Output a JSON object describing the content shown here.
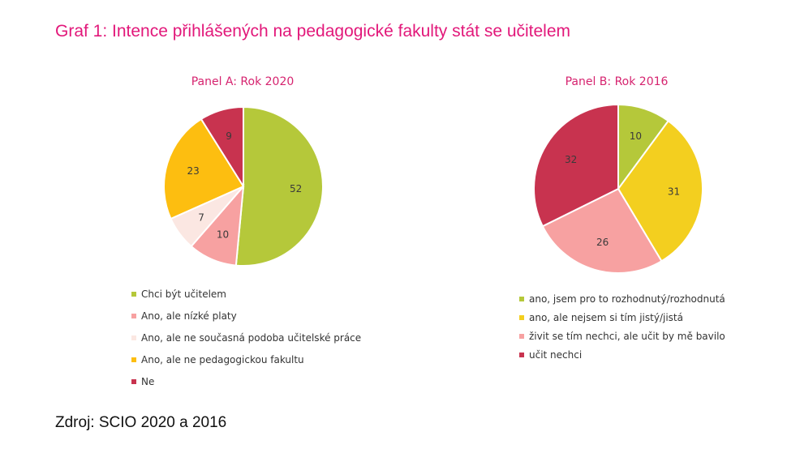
{
  "title": "Graf 1: Intence přihlášených na pedagogické fakulty stát se učitelem",
  "source": "Zdroj: SCIO 2020 a 2016",
  "chart_data": [
    {
      "type": "pie",
      "title": "Panel A: Rok 2020",
      "start_angle_deg": 0,
      "slices": [
        {
          "label": "Chci být učitelem",
          "value": 52,
          "color": "#b5c83a"
        },
        {
          "label": "Ano, ale nízké platy",
          "value": 10,
          "color": "#f7a1a1"
        },
        {
          "label": "Ano, ale ne současná podoba učitelské práce",
          "value": 7,
          "color": "#fbe7e2"
        },
        {
          "label": "Ano, ale ne pedagogickou fakultu",
          "value": 23,
          "color": "#fdbe10"
        },
        {
          "label": "Ne",
          "value": 9,
          "color": "#c8334f"
        }
      ],
      "legend_position": "bottom"
    },
    {
      "type": "pie",
      "title": "Panel B: Rok 2016",
      "start_angle_deg": 0,
      "slices": [
        {
          "label": "ano, jsem pro to rozhodnutý/rozhodnutá",
          "value": 10,
          "color": "#b5c83a"
        },
        {
          "label": "ano, ale nejsem si tím jistý/jistá",
          "value": 31,
          "color": "#f3cf1f"
        },
        {
          "label": "živit se tím nechci, ale učit by mě bavilo",
          "value": 26,
          "color": "#f7a1a1"
        },
        {
          "label": "učit nechci",
          "value": 32,
          "color": "#c8334f"
        }
      ],
      "legend_position": "bottom"
    }
  ]
}
